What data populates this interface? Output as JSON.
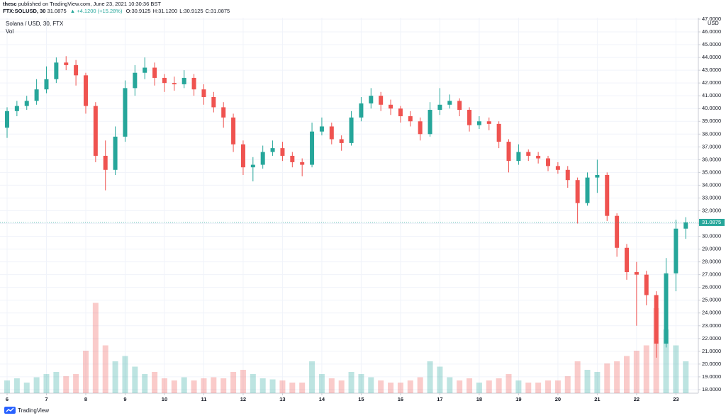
{
  "header": {
    "author": "thesc",
    "published": "published on TradingView.com, June 23, 2021 10:30:36 BST",
    "symbol": "FTX:SOLUSD, 30",
    "change": "▲ +4.1200 (+15.28%)",
    "ohlc": [
      "O:30.9125",
      "H:31.1200",
      "L:30.9125",
      "C:31.0875"
    ]
  },
  "footer": "TradingView",
  "chart_data": {
    "type": "candlestick",
    "title": "Solana / USD, 30, FTX",
    "volume_label": "Vol",
    "price_unit": "USD",
    "up_color": "#26a69a",
    "down_color": "#ef5350",
    "grid": true,
    "last_price": 31.0875,
    "x": [
      6,
      6.25,
      6.5,
      6.75,
      7,
      7.25,
      7.5,
      7.75,
      8,
      8.25,
      8.5,
      8.75,
      9,
      9.25,
      9.5,
      9.75,
      10,
      10.25,
      10.5,
      10.75,
      11,
      11.25,
      11.5,
      11.75,
      12,
      12.25,
      12.5,
      12.75,
      13,
      13.25,
      13.5,
      13.75,
      14,
      14.25,
      14.5,
      14.75,
      15,
      15.25,
      15.5,
      15.75,
      16,
      16.25,
      16.5,
      16.75,
      17,
      17.25,
      17.5,
      17.75,
      18,
      18.25,
      18.5,
      18.75,
      19,
      19.25,
      19.5,
      19.75,
      20,
      20.25,
      20.5,
      20.75,
      21,
      21.25,
      21.5,
      21.75,
      22,
      22.25,
      22.5,
      22.75,
      23,
      23.25
    ],
    "open": [
      38.5,
      39.8,
      40.2,
      40.6,
      41.5,
      42.3,
      43.6,
      43.4,
      42.6,
      40.2,
      36.3,
      35.2,
      37.8,
      41.6,
      42.8,
      43.2,
      42.4,
      42.0,
      41.9,
      42.4,
      41.5,
      40.9,
      40.1,
      39.3,
      37.2,
      35.4,
      35.6,
      36.6,
      36.9,
      36.3,
      35.8,
      35.6,
      38.2,
      38.6,
      37.6,
      37.3,
      39.3,
      40.4,
      41.0,
      40.3,
      40.0,
      39.4,
      39.0,
      38.0,
      39.9,
      40.3,
      40.6,
      39.9,
      38.7,
      39.0,
      38.8,
      37.4,
      35.9,
      36.6,
      36.3,
      36.1,
      35.5,
      35.2,
      34.4,
      32.6,
      34.6,
      34.8,
      31.6,
      29.1,
      27.2,
      27.0,
      25.4,
      21.6,
      27.1,
      30.6
    ],
    "high": [
      40.1,
      40.6,
      41.0,
      42.3,
      43.3,
      44.0,
      44.1,
      43.8,
      42.8,
      40.5,
      37.5,
      38.6,
      42.2,
      43.4,
      44.0,
      43.6,
      42.7,
      42.5,
      43.0,
      42.7,
      41.9,
      41.3,
      40.5,
      39.6,
      37.5,
      36.2,
      37.1,
      37.5,
      37.4,
      36.6,
      36.1,
      38.9,
      39.3,
      38.9,
      37.9,
      39.8,
      40.9,
      41.6,
      41.3,
      40.7,
      40.2,
      39.8,
      39.3,
      40.5,
      41.6,
      41.1,
      40.8,
      40.1,
      39.4,
      39.3,
      39.0,
      37.6,
      37.2,
      36.8,
      36.6,
      36.3,
      35.8,
      35.5,
      34.6,
      35.0,
      36.0,
      35.0,
      31.8,
      29.4,
      28.0,
      27.3,
      25.7,
      28.3,
      31.3,
      31.5
    ],
    "low": [
      37.7,
      39.4,
      39.9,
      40.3,
      41.2,
      42.0,
      43.0,
      41.8,
      39.6,
      35.8,
      33.6,
      34.8,
      37.4,
      41.0,
      42.3,
      41.8,
      41.3,
      41.4,
      41.6,
      41.0,
      40.3,
      39.7,
      38.5,
      36.6,
      34.8,
      34.3,
      35.3,
      36.3,
      35.9,
      35.4,
      34.7,
      35.4,
      37.9,
      37.2,
      36.7,
      37.1,
      39.0,
      40.0,
      39.8,
      39.5,
      38.9,
      38.6,
      37.5,
      37.8,
      39.5,
      40.0,
      39.4,
      38.2,
      38.4,
      38.3,
      36.9,
      35.0,
      35.6,
      35.9,
      35.7,
      35.1,
      34.9,
      33.8,
      31.0,
      32.4,
      33.4,
      31.2,
      28.4,
      26.6,
      23.0,
      24.6,
      20.5,
      21.3,
      25.7,
      29.8
    ],
    "close": [
      39.8,
      40.2,
      40.6,
      41.5,
      42.3,
      43.6,
      43.4,
      42.6,
      40.2,
      36.3,
      35.2,
      37.8,
      41.6,
      42.8,
      43.2,
      42.4,
      42.0,
      41.9,
      42.4,
      41.5,
      40.9,
      40.1,
      39.3,
      37.2,
      35.4,
      35.6,
      36.6,
      36.9,
      36.3,
      35.8,
      35.6,
      38.2,
      38.6,
      37.6,
      37.3,
      39.3,
      40.4,
      41.0,
      40.3,
      40.0,
      39.4,
      39.0,
      38.0,
      39.9,
      40.3,
      40.6,
      39.9,
      38.7,
      39.0,
      38.8,
      37.4,
      35.9,
      36.6,
      36.3,
      36.1,
      35.5,
      35.2,
      34.4,
      32.6,
      34.6,
      34.8,
      31.6,
      29.1,
      27.2,
      27.0,
      25.4,
      21.6,
      27.1,
      30.6,
      31.0875
    ],
    "volume": [
      12,
      14,
      10,
      15,
      18,
      20,
      16,
      18,
      40,
      85,
      45,
      30,
      35,
      25,
      18,
      20,
      14,
      12,
      15,
      12,
      14,
      15,
      14,
      20,
      22,
      18,
      14,
      13,
      12,
      10,
      10,
      30,
      18,
      14,
      12,
      20,
      18,
      15,
      12,
      10,
      10,
      12,
      15,
      30,
      25,
      15,
      12,
      14,
      10,
      12,
      14,
      18,
      12,
      10,
      10,
      12,
      12,
      16,
      30,
      22,
      20,
      28,
      30,
      35,
      40,
      45,
      80,
      60,
      45,
      30
    ],
    "xlim": [
      5.82,
      23.57
    ],
    "xticks": [
      6,
      7,
      8,
      9,
      10,
      11,
      12,
      13,
      14,
      15,
      16,
      17,
      18,
      19,
      20,
      21,
      22,
      23
    ],
    "ylim": [
      17.72,
      47.11
    ],
    "yticks": [
      {
        "value": 18,
        "label": "18.0000"
      },
      {
        "value": 19,
        "label": "19.0000"
      },
      {
        "value": 20,
        "label": "20.0000"
      },
      {
        "value": 21,
        "label": "21.0000"
      },
      {
        "value": 22,
        "label": "22.0000"
      },
      {
        "value": 23,
        "label": "23.0000"
      },
      {
        "value": 24,
        "label": "24.0000"
      },
      {
        "value": 25,
        "label": "25.0000"
      },
      {
        "value": 26,
        "label": "26.0000"
      },
      {
        "value": 27,
        "label": "27.0000"
      },
      {
        "value": 28,
        "label": "28.0000"
      },
      {
        "value": 29,
        "label": "29.0000"
      },
      {
        "value": 30,
        "label": "30.0000"
      },
      {
        "value": 31,
        "label": "31.0000"
      },
      {
        "value": 32,
        "label": "32.0000"
      },
      {
        "value": 33,
        "label": "33.0000"
      },
      {
        "value": 34,
        "label": "34.0000"
      },
      {
        "value": 35,
        "label": "35.0000"
      },
      {
        "value": 36,
        "label": "36.0000"
      },
      {
        "value": 37,
        "label": "37.0000"
      },
      {
        "value": 38,
        "label": "38.0000"
      },
      {
        "value": 39,
        "label": "39.0000"
      },
      {
        "value": 40,
        "label": "40.0000"
      },
      {
        "value": 41,
        "label": "41.0000"
      },
      {
        "value": 42,
        "label": "42.0000"
      },
      {
        "value": 43,
        "label": "43.0000"
      },
      {
        "value": 44,
        "label": "44.0000"
      },
      {
        "value": 45,
        "label": "45.0000"
      },
      {
        "value": 46,
        "label": "46.0000"
      },
      {
        "value": 47,
        "label": "47.0000"
      }
    ]
  }
}
